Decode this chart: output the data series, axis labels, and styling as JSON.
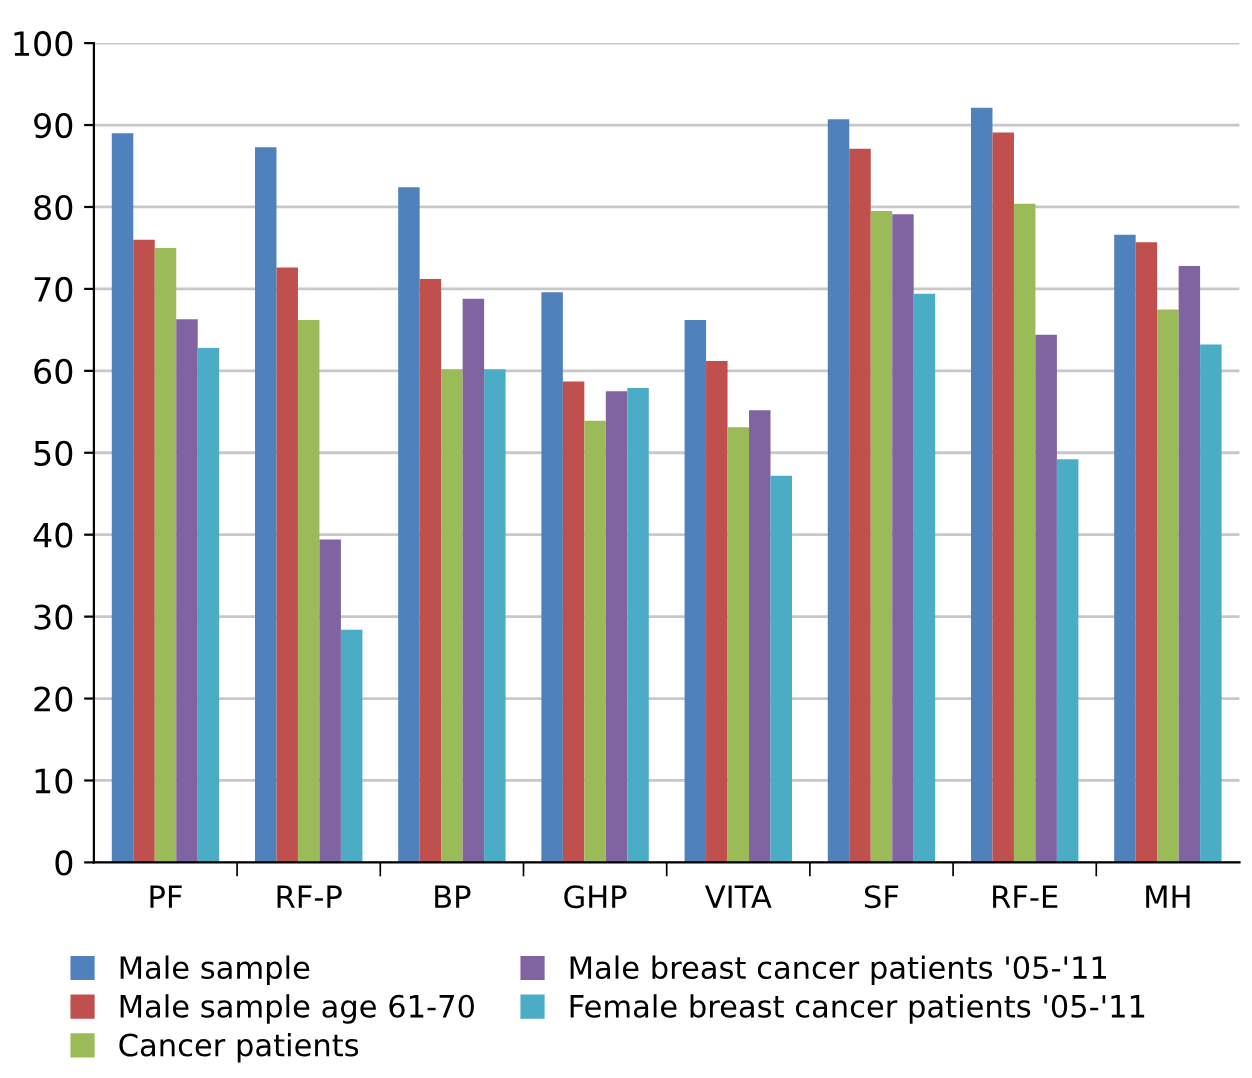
{
  "chart_data": {
    "type": "bar",
    "categories": [
      "PF",
      "RF-P",
      "BP",
      "GHP",
      "VITA",
      "SF",
      "RF-E",
      "MH"
    ],
    "series": [
      {
        "name": "Male sample",
        "color": "#4f81bd",
        "values": [
          89,
          87.3,
          82.4,
          69.6,
          66.2,
          90.7,
          92.1,
          76.6
        ]
      },
      {
        "name": "Male sample age 61-70",
        "color": "#c0504d",
        "values": [
          76,
          72.6,
          71.2,
          58.7,
          61.2,
          87.1,
          89.1,
          75.7
        ]
      },
      {
        "name": "Cancer patients",
        "color": "#9bbb59",
        "values": [
          75,
          66.2,
          60.2,
          53.9,
          53.1,
          79.5,
          80.4,
          67.5
        ]
      },
      {
        "name": "Male breast cancer patients '05-'11",
        "color": "#8064a2",
        "values": [
          66.3,
          39.4,
          68.8,
          57.5,
          55.2,
          79.1,
          64.4,
          72.8
        ]
      },
      {
        "name": "Female breast cancer patients '05-'11",
        "color": "#4bacc6",
        "values": [
          62.8,
          28.4,
          60.2,
          57.9,
          47.2,
          69.4,
          49.2,
          63.2
        ]
      }
    ],
    "ylim": [
      0,
      100
    ],
    "yticks": [
      0,
      10,
      20,
      30,
      40,
      50,
      60,
      70,
      80,
      90,
      100
    ],
    "grid": "y",
    "legend": "bottom"
  }
}
